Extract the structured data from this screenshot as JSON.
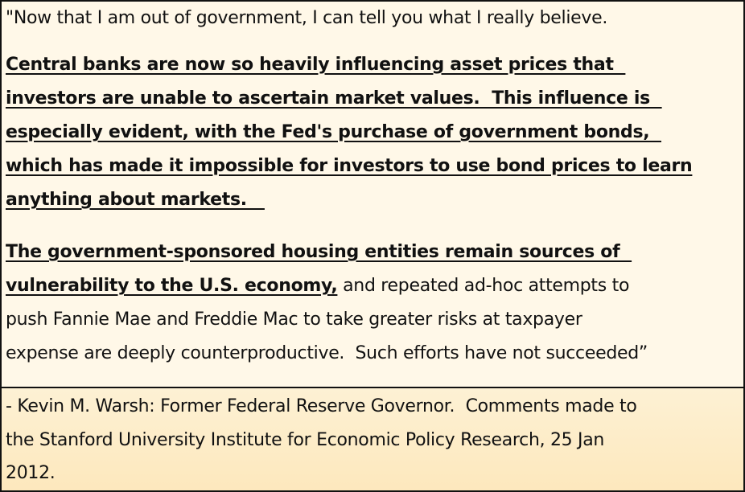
{
  "quote": {
    "intro": "\"Now that I am out of government, I can tell you what I really believe.",
    "paragraph1_lines": [
      "Central banks are now so heavily influencing asset prices that  ",
      "investors are unable to ascertain market values.  This influence is  ",
      "especially evident, with the Fed's purchase of government bonds,  ",
      "which has made it impossible for investors to use bond prices to learn",
      "anything about markets.   "
    ],
    "paragraph2_underlined": [
      "The government-sponsored housing entities remain sources of  ",
      "vulnerability to the U.S. economy,"
    ],
    "paragraph2_rest": [
      " and repeated ad-hoc attempts to",
      "push Fannie Mae and Freddie Mac to take greater risks at taxpayer",
      "expense are deeply counterproductive.  Such efforts have not succeeded”"
    ]
  },
  "attribution": {
    "lines": [
      "- Kevin M. Warsh: Former Federal Reserve Governor.  Comments made to",
      "the Stanford University Institute for Economic Policy Research, 25 Jan",
      "2012."
    ]
  },
  "colors": {
    "quote_bg": "#fff8e8",
    "attribution_bg": "#fde8bd",
    "border": "#111111"
  }
}
